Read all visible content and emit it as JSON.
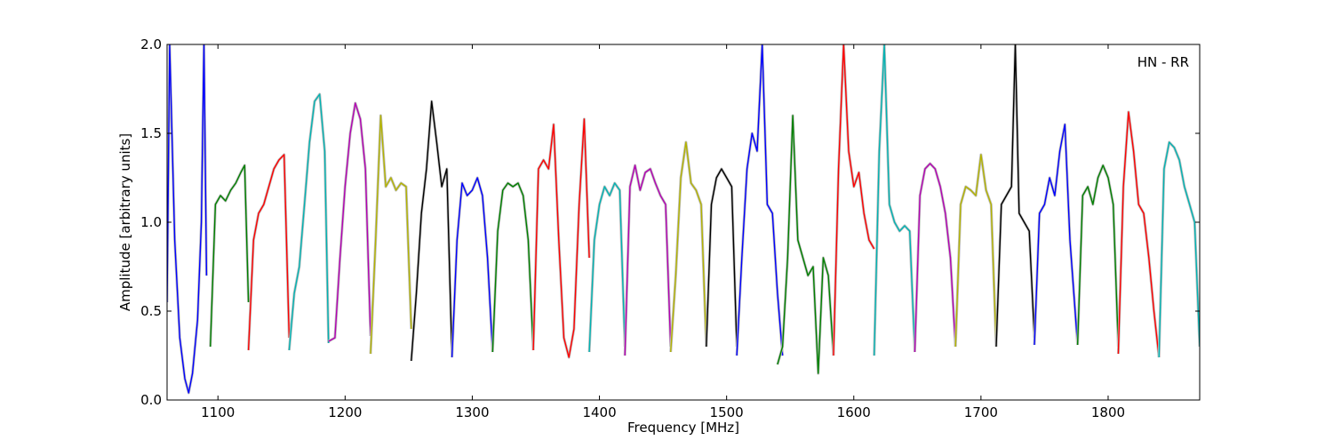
{
  "chart_data": {
    "type": "line",
    "title": "",
    "xlabel": "Frequency [MHz]",
    "ylabel": "Amplitude [arbitrary units]",
    "xlim": [
      1060,
      1872
    ],
    "ylim": [
      0,
      2.0
    ],
    "xticks": [
      1100,
      1200,
      1300,
      1400,
      1500,
      1600,
      1700,
      1800
    ],
    "yticks": [
      0.0,
      0.5,
      1.0,
      1.5,
      2.0
    ],
    "xtick_labels": [
      "1100",
      "1200",
      "1300",
      "1400",
      "1500",
      "1600",
      "1700",
      "1800"
    ],
    "ytick_labels": [
      "0.0",
      "0.5",
      "1.0",
      "1.5",
      "2.0"
    ],
    "grid": false,
    "legend_text": "HN - RR",
    "legend_location": "top-right",
    "background_trace_color": "#c0c0c0",
    "series": [
      {
        "color": "#0000ff",
        "x": [
          1060,
          1062,
          1066,
          1070,
          1074,
          1077,
          1080,
          1084,
          1087,
          1089,
          1091
        ],
        "y": [
          0.55,
          2.0,
          0.9,
          0.35,
          0.12,
          0.04,
          0.15,
          0.45,
          1.0,
          2.0,
          0.7
        ]
      },
      {
        "color": "#008000",
        "x": [
          1094,
          1098,
          1102,
          1106,
          1110,
          1114,
          1118,
          1121,
          1124
        ],
        "y": [
          0.3,
          1.1,
          1.15,
          1.12,
          1.18,
          1.22,
          1.28,
          1.32,
          0.55
        ]
      },
      {
        "color": "#ff0000",
        "x": [
          1124,
          1128,
          1132,
          1136,
          1140,
          1144,
          1148,
          1152,
          1156
        ],
        "y": [
          0.28,
          0.9,
          1.05,
          1.1,
          1.2,
          1.3,
          1.35,
          1.38,
          0.35
        ]
      },
      {
        "color": "#00b3b3",
        "x": [
          1156,
          1160,
          1164,
          1168,
          1172,
          1176,
          1180,
          1184,
          1187
        ],
        "y": [
          0.28,
          0.6,
          0.75,
          1.1,
          1.45,
          1.68,
          1.72,
          1.4,
          0.32
        ]
      },
      {
        "color": "#b300b3",
        "x": [
          1187,
          1192,
          1196,
          1200,
          1204,
          1208,
          1212,
          1216,
          1220
        ],
        "y": [
          0.33,
          0.35,
          0.8,
          1.2,
          1.5,
          1.67,
          1.58,
          1.3,
          0.36
        ]
      },
      {
        "color": "#b3b300",
        "x": [
          1220,
          1224,
          1228,
          1232,
          1236,
          1240,
          1244,
          1248,
          1252
        ],
        "y": [
          0.26,
          0.9,
          1.6,
          1.2,
          1.25,
          1.18,
          1.22,
          1.2,
          0.4
        ]
      },
      {
        "color": "#000000",
        "x": [
          1252,
          1256,
          1260,
          1264,
          1268,
          1272,
          1276,
          1280,
          1284
        ],
        "y": [
          0.22,
          0.6,
          1.05,
          1.3,
          1.68,
          1.45,
          1.2,
          1.3,
          0.24
        ]
      },
      {
        "color": "#0000ff",
        "x": [
          1284,
          1288,
          1292,
          1296,
          1300,
          1304,
          1308,
          1312,
          1316
        ],
        "y": [
          0.24,
          0.9,
          1.22,
          1.15,
          1.18,
          1.25,
          1.15,
          0.8,
          0.27
        ]
      },
      {
        "color": "#008000",
        "x": [
          1316,
          1320,
          1324,
          1328,
          1332,
          1336,
          1340,
          1344,
          1348
        ],
        "y": [
          0.27,
          0.95,
          1.18,
          1.22,
          1.2,
          1.22,
          1.15,
          0.9,
          0.28
        ]
      },
      {
        "color": "#ff0000",
        "x": [
          1348,
          1352,
          1356,
          1360,
          1364,
          1368,
          1372,
          1376,
          1380,
          1384,
          1388,
          1392
        ],
        "y": [
          0.28,
          1.3,
          1.35,
          1.3,
          1.55,
          0.9,
          0.35,
          0.24,
          0.4,
          1.1,
          1.58,
          0.8
        ]
      },
      {
        "color": "#00b3b3",
        "x": [
          1392,
          1396,
          1400,
          1404,
          1408,
          1412,
          1416,
          1420
        ],
        "y": [
          0.27,
          0.9,
          1.1,
          1.2,
          1.15,
          1.22,
          1.18,
          0.3
        ]
      },
      {
        "color": "#b300b3",
        "x": [
          1420,
          1424,
          1428,
          1432,
          1436,
          1440,
          1444,
          1448,
          1452,
          1456
        ],
        "y": [
          0.25,
          1.2,
          1.32,
          1.18,
          1.28,
          1.3,
          1.22,
          1.15,
          1.1,
          0.3
        ]
      },
      {
        "color": "#b3b300",
        "x": [
          1456,
          1460,
          1464,
          1468,
          1472,
          1476,
          1480,
          1484
        ],
        "y": [
          0.27,
          0.7,
          1.25,
          1.45,
          1.22,
          1.18,
          1.1,
          0.3
        ]
      },
      {
        "color": "#000000",
        "x": [
          1484,
          1488,
          1492,
          1496,
          1500,
          1504,
          1508
        ],
        "y": [
          0.3,
          1.1,
          1.25,
          1.3,
          1.25,
          1.2,
          0.3
        ]
      },
      {
        "color": "#0000ff",
        "x": [
          1508,
          1512,
          1516,
          1520,
          1524,
          1528,
          1532,
          1536,
          1540,
          1544
        ],
        "y": [
          0.25,
          0.8,
          1.3,
          1.5,
          1.4,
          2.0,
          1.1,
          1.05,
          0.6,
          0.25
        ]
      },
      {
        "color": "#008000",
        "x": [
          1540,
          1544,
          1548,
          1552,
          1556,
          1560,
          1564,
          1568,
          1572,
          1576,
          1580,
          1584
        ],
        "y": [
          0.2,
          0.3,
          0.8,
          1.6,
          0.9,
          0.8,
          0.7,
          0.75,
          0.15,
          0.8,
          0.7,
          0.25
        ]
      },
      {
        "color": "#ff0000",
        "x": [
          1584,
          1588,
          1592,
          1596,
          1600,
          1604,
          1608,
          1612,
          1616
        ],
        "y": [
          0.25,
          1.3,
          2.0,
          1.4,
          1.2,
          1.28,
          1.05,
          0.9,
          0.85
        ]
      },
      {
        "color": "#00b3b3",
        "x": [
          1616,
          1620,
          1624,
          1628,
          1632,
          1636,
          1640,
          1644,
          1648
        ],
        "y": [
          0.25,
          1.4,
          2.0,
          1.1,
          1.0,
          0.95,
          0.98,
          0.95,
          0.27
        ]
      },
      {
        "color": "#b300b3",
        "x": [
          1648,
          1652,
          1656,
          1660,
          1664,
          1668,
          1672,
          1676,
          1680
        ],
        "y": [
          0.27,
          1.15,
          1.3,
          1.33,
          1.3,
          1.2,
          1.05,
          0.8,
          0.3
        ]
      },
      {
        "color": "#b3b300",
        "x": [
          1680,
          1684,
          1688,
          1692,
          1696,
          1700,
          1704,
          1708,
          1712
        ],
        "y": [
          0.3,
          1.1,
          1.2,
          1.18,
          1.15,
          1.38,
          1.18,
          1.1,
          0.3
        ]
      },
      {
        "color": "#000000",
        "x": [
          1712,
          1716,
          1720,
          1724,
          1727,
          1730,
          1734,
          1738,
          1742
        ],
        "y": [
          0.3,
          1.1,
          1.15,
          1.2,
          2.0,
          1.05,
          1.0,
          0.95,
          0.35
        ]
      },
      {
        "color": "#0000ff",
        "x": [
          1742,
          1746,
          1750,
          1754,
          1758,
          1762,
          1766,
          1770,
          1776
        ],
        "y": [
          0.31,
          1.05,
          1.1,
          1.25,
          1.15,
          1.4,
          1.55,
          0.9,
          0.31
        ]
      },
      {
        "color": "#008000",
        "x": [
          1776,
          1780,
          1784,
          1788,
          1792,
          1796,
          1800,
          1804,
          1808
        ],
        "y": [
          0.31,
          1.15,
          1.2,
          1.1,
          1.25,
          1.32,
          1.25,
          1.1,
          0.3
        ]
      },
      {
        "color": "#ff0000",
        "x": [
          1808,
          1812,
          1816,
          1820,
          1824,
          1828,
          1832,
          1836,
          1840
        ],
        "y": [
          0.26,
          1.2,
          1.62,
          1.4,
          1.1,
          1.05,
          0.8,
          0.5,
          0.24
        ]
      },
      {
        "color": "#00b3b3",
        "x": [
          1840,
          1844,
          1848,
          1852,
          1856,
          1860,
          1864,
          1868,
          1872
        ],
        "y": [
          0.24,
          1.3,
          1.45,
          1.42,
          1.35,
          1.2,
          1.1,
          1.0,
          0.3
        ]
      }
    ]
  }
}
